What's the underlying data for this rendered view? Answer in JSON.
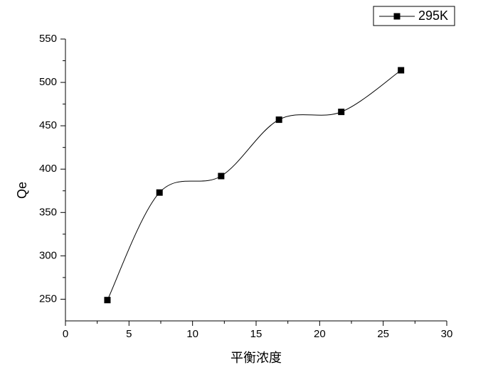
{
  "chart_data": {
    "type": "line",
    "x_label": "平衡浓度",
    "y_label": "Qe",
    "x": [
      3.3,
      7.4,
      12.25,
      16.8,
      21.7,
      26.4
    ],
    "series": [
      {
        "name": "295K",
        "color": "#000000",
        "values": [
          249,
          373,
          392,
          457,
          466,
          514
        ]
      }
    ],
    "xlim": [
      0,
      30
    ],
    "xticks": [
      0,
      5,
      10,
      15,
      20,
      25,
      30
    ],
    "ylim": [
      225,
      550
    ],
    "yticks": [
      250,
      300,
      350,
      400,
      450,
      500,
      550
    ],
    "smooth": true,
    "legend": "top-right"
  }
}
